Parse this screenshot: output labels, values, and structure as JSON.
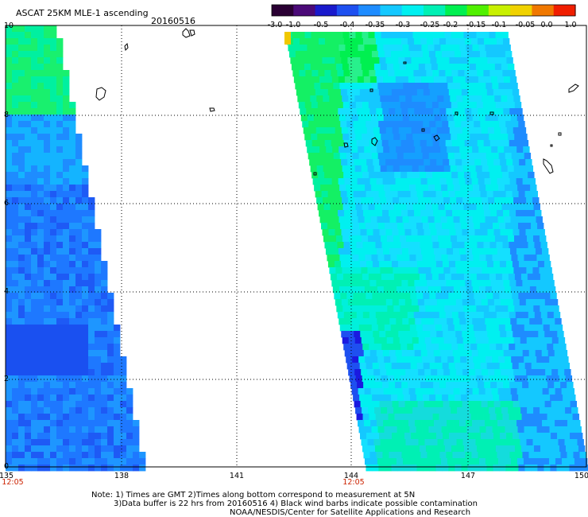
{
  "header": {
    "title": "ASCAT 25KM MLE-1 ascending",
    "date": "20160516"
  },
  "colorbar": {
    "ticks": [
      "-3.0",
      "-1.0",
      "-0.5",
      "-0.4",
      "-0.35",
      "-0.3",
      "-0.25",
      "-0.2",
      "-0.15",
      "-0.1",
      "-0.05",
      "0.0",
      "1.0"
    ],
    "colors": [
      "#2a0033",
      "#4b0a78",
      "#1a1acc",
      "#1e50f0",
      "#1e8cff",
      "#14c8ff",
      "#00f0f0",
      "#00f0b4",
      "#00f050",
      "#50f000",
      "#c8f000",
      "#f0d200",
      "#f07800",
      "#f01e00"
    ]
  },
  "map": {
    "lon_ticks": [
      "135",
      "138",
      "141",
      "144",
      "147",
      "150"
    ],
    "lat_ticks": [
      "0",
      "2",
      "4",
      "6",
      "8",
      "10"
    ],
    "swath_times": [
      "12:05",
      "12:05"
    ],
    "time_color": "#cc2200"
  },
  "footer": {
    "line1": "Note: 1) Times are GMT 2)Times along bottom correspond to measurement at 5N",
    "line2": "3)Data buffer is 22 hrs from 20160516 4) Black wind barbs indicate possible contamination",
    "line3": "NOAA/NESDIS/Center for Satellite Applications and Research"
  }
}
